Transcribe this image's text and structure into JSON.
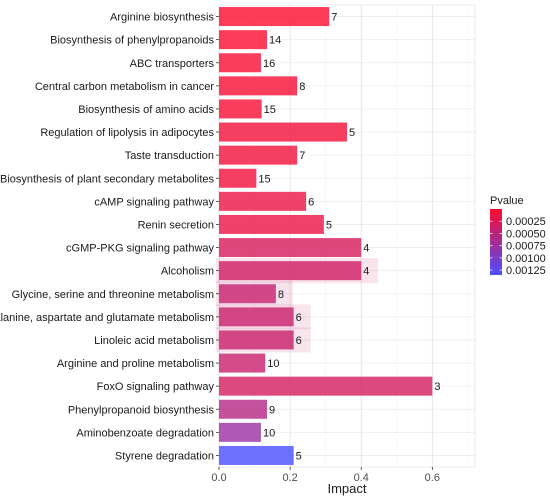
{
  "chart_data": {
    "type": "bar",
    "orientation": "horizontal",
    "xlabel": "Impact",
    "ylabel": "",
    "xlim": [
      0,
      0.72
    ],
    "x_ticks": [
      "0.0",
      "0.2",
      "0.4",
      "0.6"
    ],
    "grid": true,
    "legend_placement": "right",
    "legend": {
      "title": "Pvalue",
      "ticks": [
        "0.00025",
        "0.00050",
        "0.00075",
        "0.00100",
        "0.00125"
      ],
      "range": [
        0.0,
        0.00135
      ],
      "color_low": "#ff0a2c",
      "color_high": "#4a4dff"
    },
    "categories": [
      "Arginine biosynthesis",
      "Biosynthesis of phenylpropanoids",
      "ABC transporters",
      "Central carbon metabolism in cancer",
      "Biosynthesis of amino acids",
      "Regulation of lipolysis in adipocytes",
      "Taste transduction",
      "Biosynthesis of plant secondary metabolites",
      "cAMP signaling pathway",
      "Renin secretion",
      "cGMP-PKG signaling pathway",
      "Alcoholism",
      "Glycine, serine and threonine metabolism",
      "Alanine, aspartate and glutamate metabolism",
      "Linoleic acid metabolism",
      "Arginine and proline metabolism",
      "FoxO signaling pathway",
      "Phenylpropanoid biosynthesis",
      "Aminobenzoate degradation",
      "Styrene degradation"
    ],
    "values": [
      0.31,
      0.135,
      0.118,
      0.22,
      0.12,
      0.36,
      0.22,
      0.105,
      0.245,
      0.295,
      0.4,
      0.4,
      0.16,
      0.21,
      0.21,
      0.13,
      0.6,
      0.135,
      0.118,
      0.21
    ],
    "labels": [
      "7",
      "14",
      "16",
      "8",
      "15",
      "5",
      "7",
      "15",
      "6",
      "5",
      "4",
      "4",
      "8",
      "6",
      "6",
      "10",
      "3",
      "9",
      "10",
      "5"
    ],
    "pvalue": [
      2e-05,
      4e-05,
      6e-05,
      5e-05,
      6e-05,
      8e-05,
      0.0001,
      9e-05,
      0.00014,
      0.00015,
      0.0003,
      0.00035,
      0.00042,
      0.0004,
      0.0004,
      0.0004,
      0.00032,
      0.00055,
      0.00075,
      0.00135
    ],
    "highlighted": [
      false,
      false,
      false,
      false,
      false,
      false,
      false,
      false,
      false,
      false,
      false,
      true,
      true,
      true,
      true,
      false,
      false,
      false,
      false,
      false
    ]
  }
}
